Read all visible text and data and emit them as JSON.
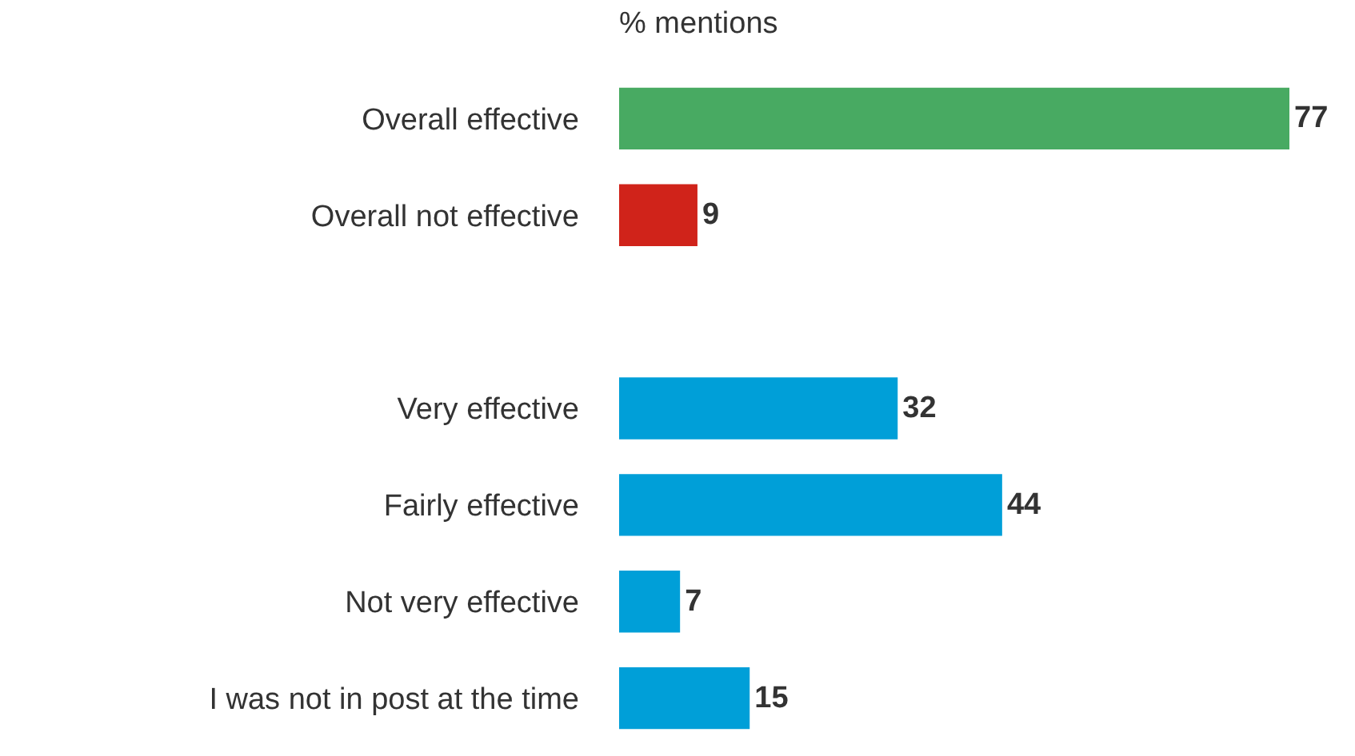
{
  "chart_data": {
    "type": "bar",
    "orientation": "horizontal",
    "title": "% mentions",
    "categories": [
      "Overall effective",
      "Overall not effective",
      null,
      "Very effective",
      "Fairly effective",
      "Not very effective",
      "I was not in post at the time"
    ],
    "values": [
      77,
      9,
      null,
      32,
      44,
      7,
      15
    ],
    "colors": [
      "#48aa62",
      "#d0231a",
      null,
      "#009fd8",
      "#009fd8",
      "#009fd8",
      "#009fd8"
    ],
    "data_labels": true
  }
}
